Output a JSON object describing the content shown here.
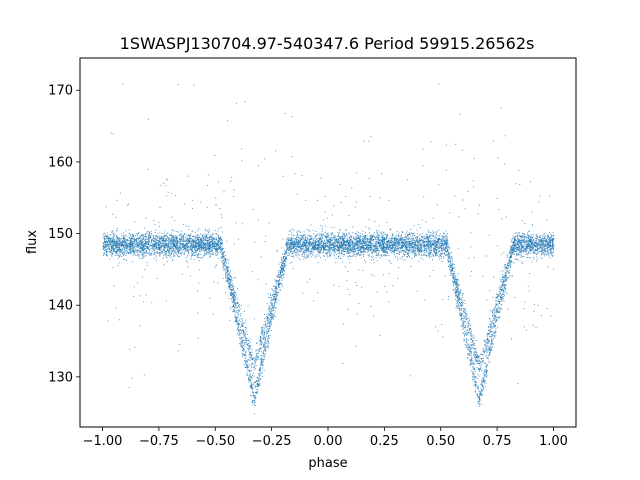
{
  "chart_data": {
    "type": "scatter",
    "title": "1SWASPJ130704.97-540347.6 Period 59915.26562s",
    "xlabel": "phase",
    "ylabel": "flux",
    "xlim": [
      -1.1,
      1.1
    ],
    "ylim": [
      123,
      174.5
    ],
    "xticks": [
      -1.0,
      -0.75,
      -0.5,
      -0.25,
      0.0,
      0.25,
      0.5,
      0.75,
      1.0
    ],
    "xtick_labels": [
      "−1.00",
      "−0.75",
      "−0.50",
      "−0.25",
      "0.00",
      "0.25",
      "0.50",
      "0.75",
      "1.00"
    ],
    "yticks": [
      130,
      140,
      150,
      160,
      170
    ],
    "ytick_labels": [
      "130",
      "140",
      "150",
      "160",
      "170"
    ],
    "grid": false,
    "marker_color": "#1f77b4",
    "series": [
      {
        "x_range": [
          -1.0,
          1.0
        ],
        "baseline_flux": 148.5,
        "baseline_scatter": 1.5,
        "eclipses": [
          {
            "phase_center": -0.33,
            "min_flux_primary": 127,
            "min_flux_secondary": 131.5,
            "ingress_phase": -0.47,
            "egress_phase": -0.17
          },
          {
            "phase_center": 0.67,
            "min_flux_primary": 127,
            "min_flux_secondary": 131.5,
            "ingress_phase": 0.53,
            "egress_phase": 0.83
          }
        ]
      }
    ]
  }
}
